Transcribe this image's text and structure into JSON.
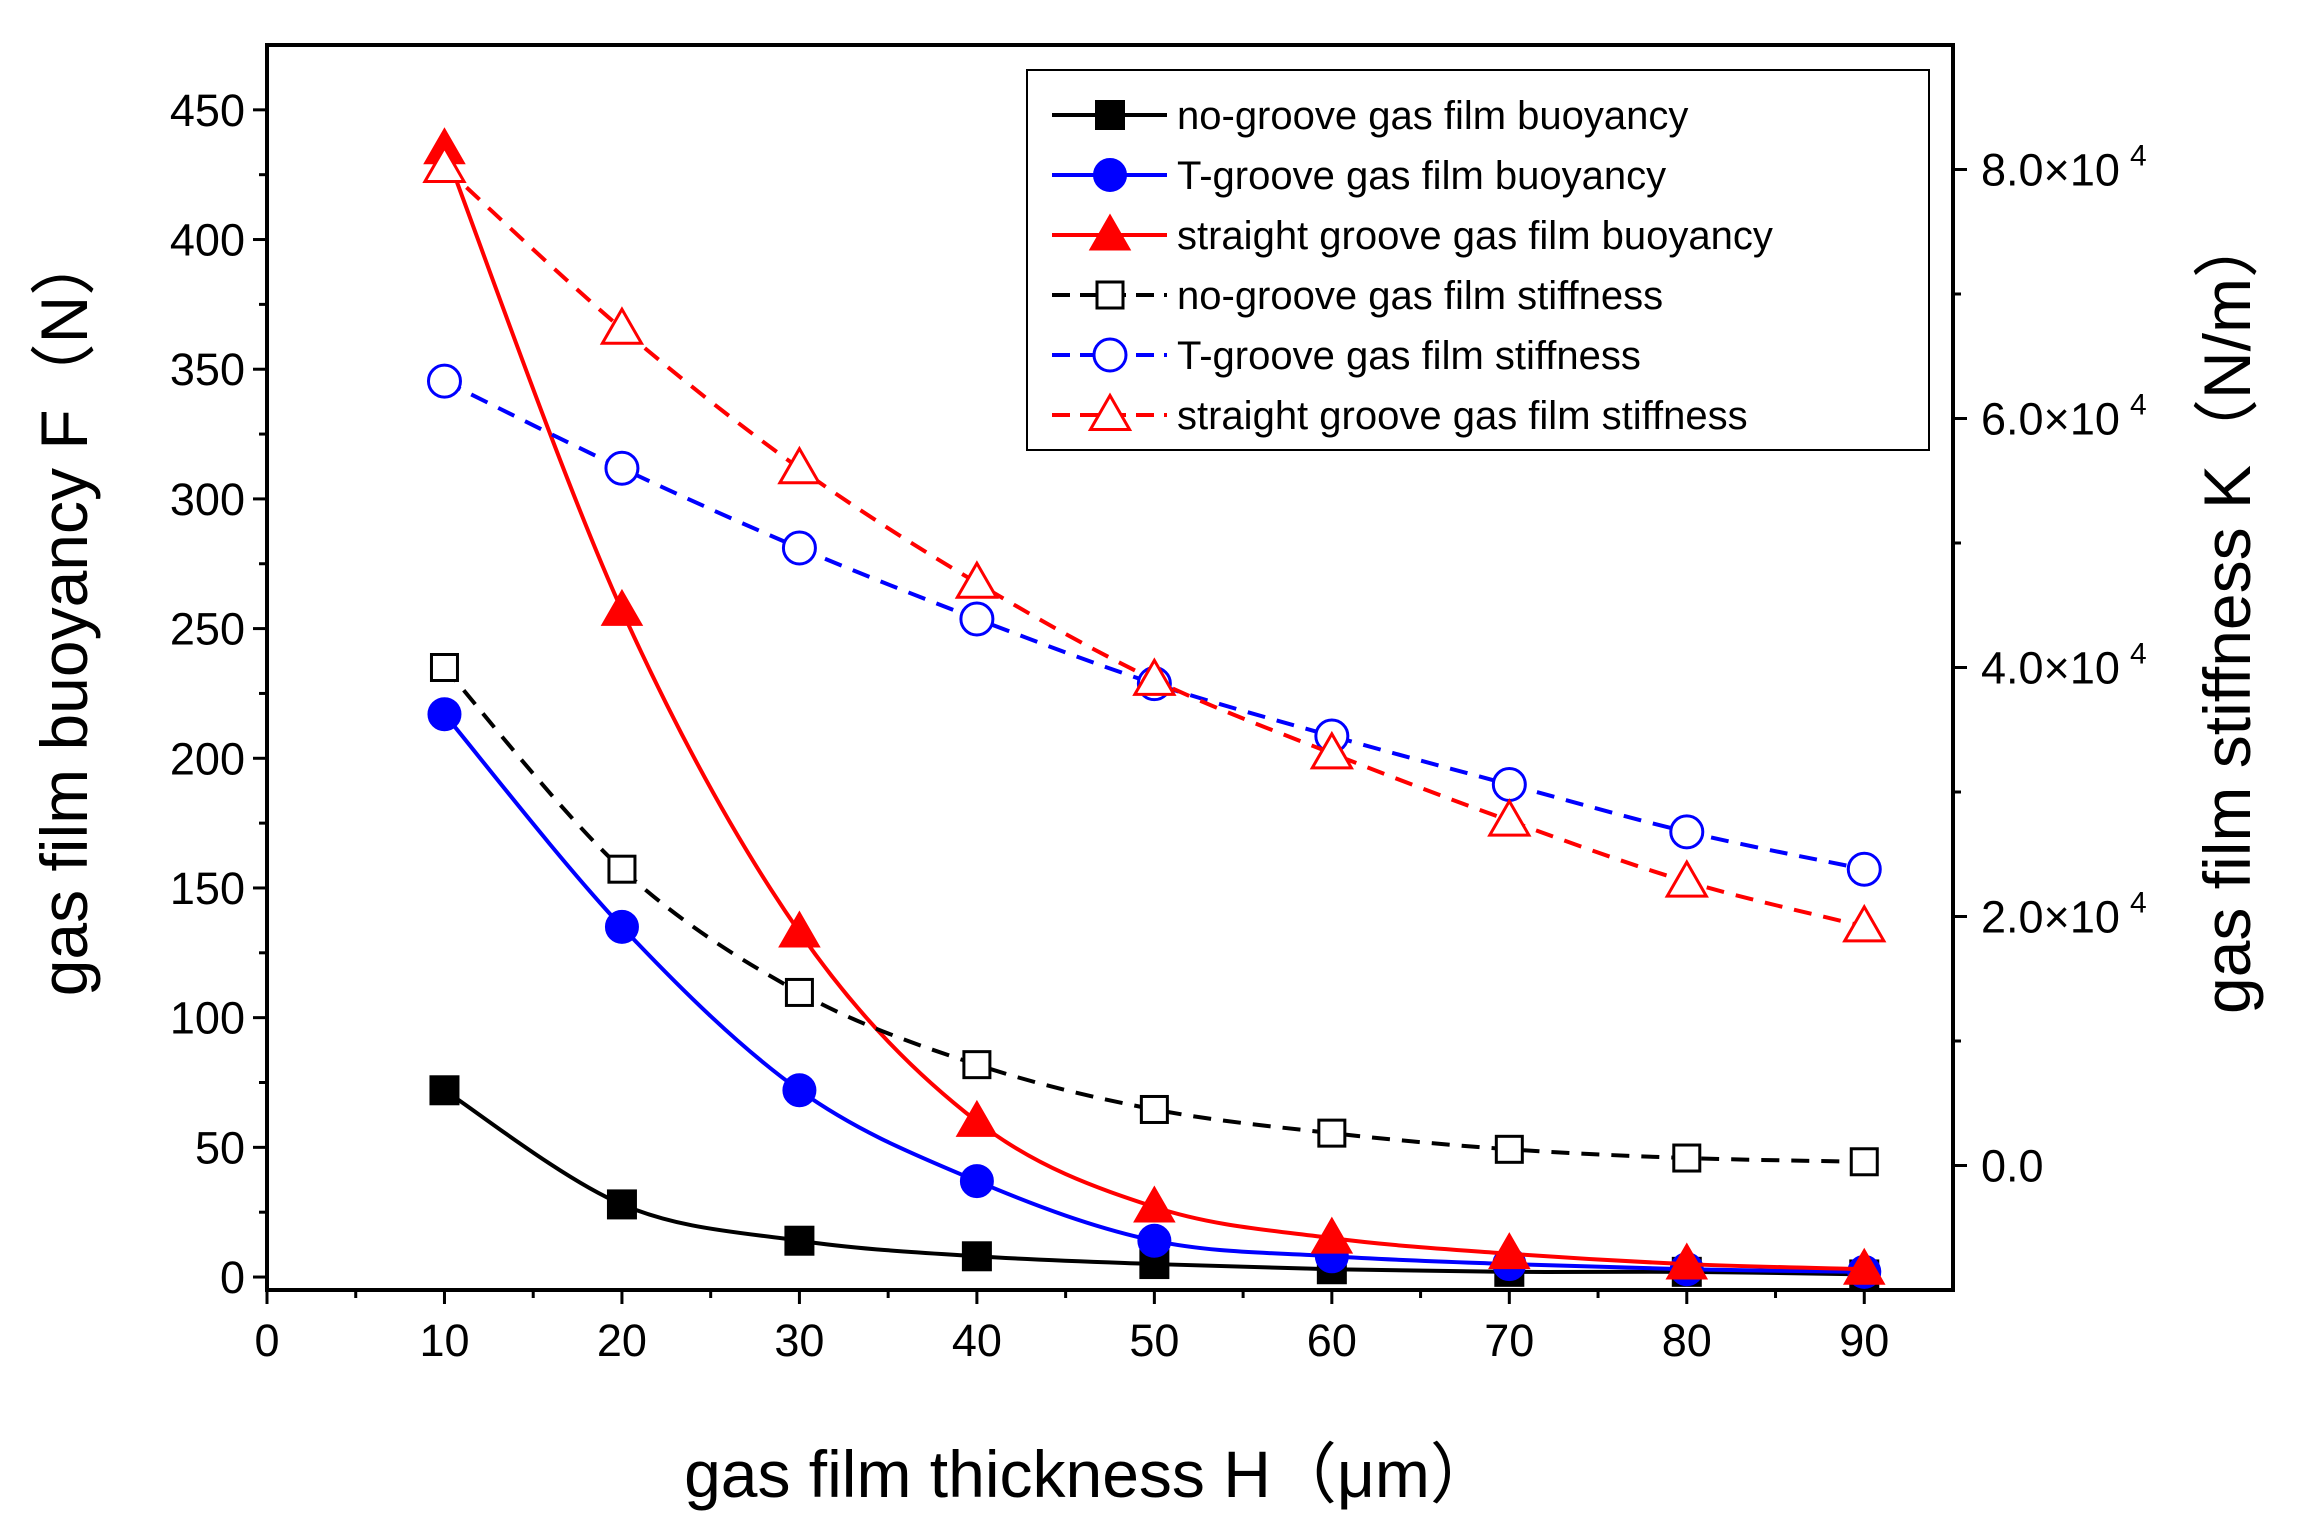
{
  "chart_data": {
    "type": "line",
    "title": "",
    "xlabel": "gas film thickness H（μm）",
    "ylabel": "gas film buoyancy F（N）",
    "y2label": "gas film stiffness K（N/m）",
    "xlim": [
      0,
      95
    ],
    "ylim": [
      -5,
      475
    ],
    "y2lim": [
      -10000,
      90000
    ],
    "xticks": [
      0,
      10,
      20,
      30,
      40,
      50,
      60,
      70,
      80,
      90
    ],
    "yticks": [
      0,
      50,
      100,
      150,
      200,
      250,
      300,
      350,
      400,
      450
    ],
    "y2ticks": [
      {
        "value": 0,
        "label": "0.0"
      },
      {
        "value": 20000,
        "label": "2.0×10",
        "exp": "4"
      },
      {
        "value": 40000,
        "label": "4.0×10",
        "exp": "4"
      },
      {
        "value": 60000,
        "label": "6.0×10",
        "exp": "4"
      },
      {
        "value": 80000,
        "label": "8.0×10",
        "exp": "4"
      }
    ],
    "x": [
      10,
      20,
      30,
      40,
      50,
      60,
      70,
      80,
      90
    ],
    "legend_position": "top-right",
    "grid": false,
    "series": [
      {
        "name": "no-groove gas film buoyancy",
        "axis": "left",
        "color": "#000000",
        "marker": "square",
        "filled": true,
        "dashed": false,
        "values": [
          72,
          28,
          14,
          8,
          5,
          3,
          2,
          2,
          1
        ]
      },
      {
        "name": "T-groove gas film buoyancy",
        "axis": "left",
        "color": "#0000ff",
        "marker": "circle",
        "filled": true,
        "dashed": false,
        "values": [
          217,
          135,
          72,
          37,
          14,
          8,
          5,
          3,
          2
        ]
      },
      {
        "name": "straight groove gas film buoyancy",
        "axis": "left",
        "color": "#ff0000",
        "marker": "triangle",
        "filled": true,
        "dashed": false,
        "values": [
          435,
          257,
          133,
          60,
          27,
          15,
          9,
          5,
          3
        ]
      },
      {
        "name": "no-groove gas film stiffness",
        "axis": "right",
        "color": "#000000",
        "marker": "square",
        "filled": false,
        "dashed": true,
        "values": [
          40000,
          23800,
          13900,
          8100,
          4500,
          2600,
          1300,
          600,
          300
        ]
      },
      {
        "name": "T-groove gas film stiffness",
        "axis": "right",
        "color": "#0000ff",
        "marker": "circle",
        "filled": false,
        "dashed": true,
        "values": [
          63000,
          56000,
          49600,
          43900,
          38700,
          34500,
          30600,
          26800,
          23800
        ]
      },
      {
        "name": "straight groove gas film stiffness",
        "axis": "right",
        "color": "#ff0000",
        "marker": "triangle",
        "filled": false,
        "dashed": true,
        "values": [
          80200,
          67200,
          56000,
          46800,
          39000,
          33100,
          27700,
          22800,
          19200
        ]
      }
    ]
  }
}
